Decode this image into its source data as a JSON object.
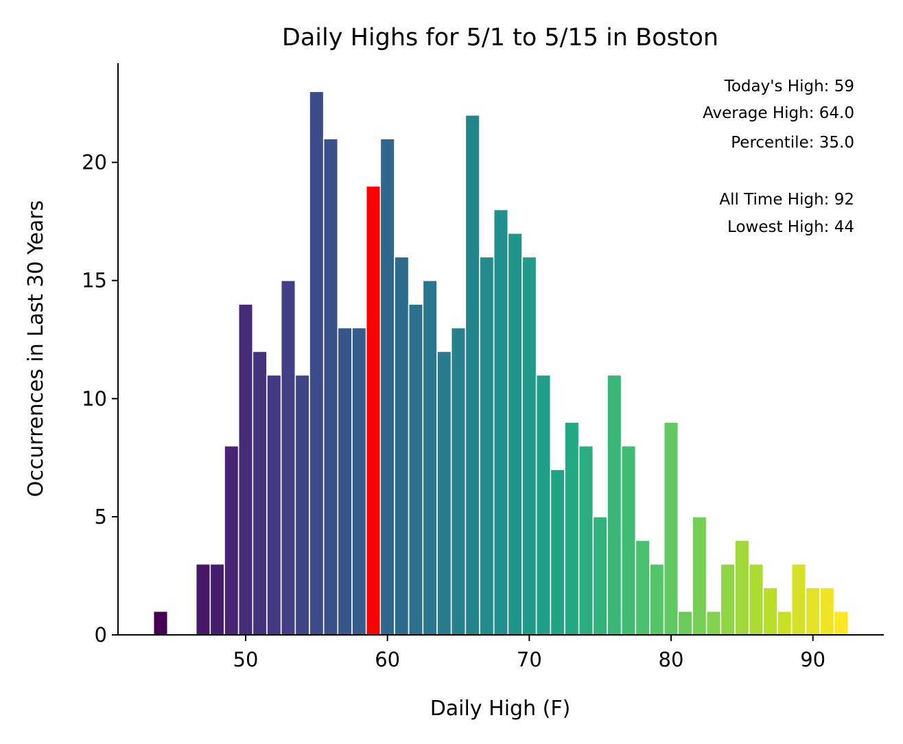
{
  "chart_data": {
    "type": "bar",
    "title": "Daily Highs for 5/1 to 5/15 in Boston",
    "xlabel": "Daily High (F)",
    "ylabel": "Occurrences in Last 30 Years",
    "xlim": [
      41,
      95
    ],
    "ylim": [
      0,
      24.2
    ],
    "xticks": [
      50,
      60,
      70,
      80,
      90
    ],
    "yticks": [
      0,
      5,
      10,
      15,
      20
    ],
    "grid": false,
    "colormap": "viridis",
    "highlight_color": "#ff0000",
    "highlight_x": 59,
    "x": [
      44,
      45,
      46,
      47,
      48,
      49,
      50,
      51,
      52,
      53,
      54,
      55,
      56,
      57,
      58,
      59,
      60,
      61,
      62,
      63,
      64,
      65,
      66,
      67,
      68,
      69,
      70,
      71,
      72,
      73,
      74,
      75,
      76,
      77,
      78,
      79,
      80,
      81,
      82,
      83,
      84,
      85,
      86,
      87,
      88,
      89,
      90,
      91,
      92
    ],
    "values": [
      1,
      0,
      0,
      3,
      3,
      8,
      14,
      12,
      11,
      15,
      11,
      23,
      21,
      13,
      13,
      19,
      21,
      16,
      14,
      15,
      12,
      13,
      22,
      16,
      18,
      17,
      16,
      11,
      7,
      9,
      8,
      5,
      11,
      8,
      4,
      3,
      9,
      1,
      5,
      1,
      3,
      4,
      3,
      2,
      1,
      3,
      2,
      2,
      1
    ],
    "annotations": {
      "todays_high": "Today's High: 59",
      "average_high": "Average High: 64.0",
      "percentile": "Percentile: 35.0",
      "all_time_high": "All Time High: 92",
      "lowest_high": "Lowest High: 44"
    },
    "annotation_position": "top-right"
  }
}
